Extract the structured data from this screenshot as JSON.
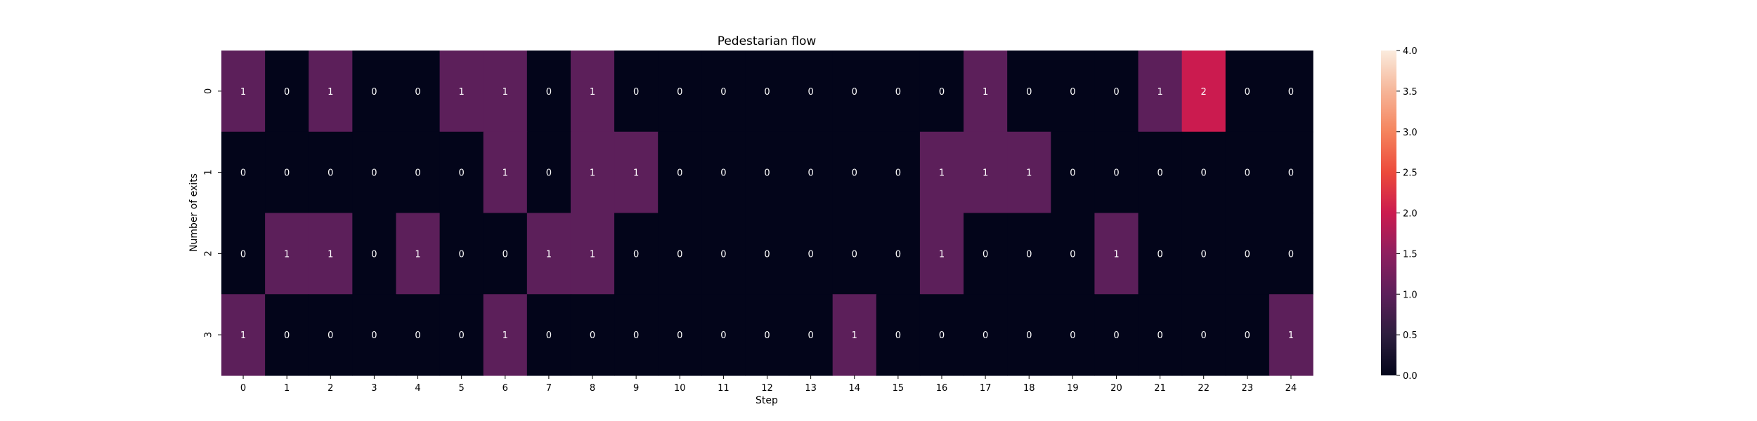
{
  "chart_data": {
    "type": "heatmap",
    "title": "Pedestarian flow",
    "xlabel": "Step",
    "ylabel": "Number of exits",
    "x_categories": [
      "0",
      "1",
      "2",
      "3",
      "4",
      "5",
      "6",
      "7",
      "8",
      "9",
      "10",
      "11",
      "12",
      "13",
      "14",
      "15",
      "16",
      "17",
      "18",
      "19",
      "20",
      "21",
      "22",
      "23",
      "24"
    ],
    "y_categories": [
      "0",
      "1",
      "2",
      "3"
    ],
    "values": [
      [
        1,
        0,
        1,
        0,
        0,
        1,
        1,
        0,
        1,
        0,
        0,
        0,
        0,
        0,
        0,
        0,
        0,
        1,
        0,
        0,
        0,
        1,
        2,
        0,
        0
      ],
      [
        0,
        0,
        0,
        0,
        0,
        0,
        1,
        0,
        1,
        1,
        0,
        0,
        0,
        0,
        0,
        0,
        1,
        1,
        1,
        0,
        0,
        0,
        0,
        0,
        0
      ],
      [
        0,
        1,
        1,
        0,
        1,
        0,
        0,
        1,
        1,
        0,
        0,
        0,
        0,
        0,
        0,
        0,
        1,
        0,
        0,
        0,
        1,
        0,
        0,
        0,
        0
      ],
      [
        1,
        0,
        0,
        0,
        0,
        0,
        1,
        0,
        0,
        0,
        0,
        0,
        0,
        0,
        1,
        0,
        0,
        0,
        0,
        0,
        0,
        0,
        0,
        0,
        1
      ]
    ],
    "colorbar": {
      "range": [
        0,
        4
      ],
      "ticks": [
        "0.0",
        "0.5",
        "1.0",
        "1.5",
        "2.0",
        "2.5",
        "3.0",
        "3.5",
        "4.0"
      ]
    },
    "annotations": true,
    "grid": false
  }
}
